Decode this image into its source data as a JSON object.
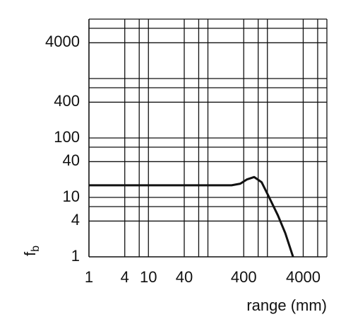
{
  "chart_data": {
    "type": "line",
    "xlabel": "range (mm)",
    "ylabel": "f",
    "ylabel_subscript": "b",
    "xscale": "log",
    "yscale": "log",
    "xlim": [
      1,
      10000
    ],
    "ylim": [
      1,
      10000
    ],
    "xticks": [
      1,
      4,
      10,
      40,
      400,
      4000
    ],
    "yticks": [
      1,
      4,
      10,
      40,
      100,
      400,
      4000
    ],
    "xgrid": [
      4,
      7,
      10,
      40,
      70,
      100,
      400,
      700,
      1000,
      4000,
      7000,
      10000
    ],
    "ygrid": [
      4,
      7,
      10,
      40,
      70,
      100,
      400,
      700,
      1000,
      4000,
      7000,
      10000
    ],
    "grid": true,
    "series": [
      {
        "color": "#111111",
        "x": [
          1,
          100,
          250,
          350,
          450,
          600,
          800,
          1000,
          1500,
          2000,
          2700
        ],
        "values": [
          16,
          16,
          16,
          17,
          20,
          22,
          18,
          11.5,
          5,
          2.5,
          1
        ]
      }
    ]
  }
}
